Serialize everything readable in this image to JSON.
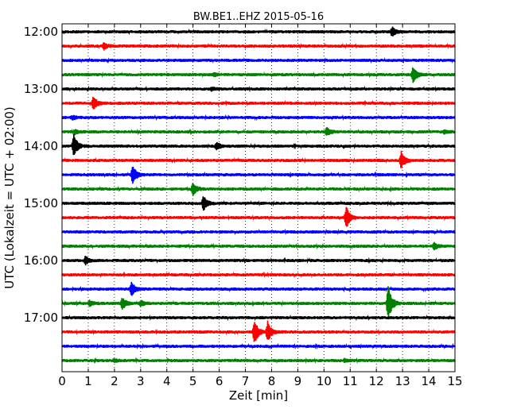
{
  "chart_data": {
    "type": "line",
    "title": "BW.BE1..EHZ 2015-05-16",
    "xlabel": "Zeit  [min]",
    "ylabel": "UTC (Lokalzeit = UTC + 02:00)",
    "xlim": [
      0,
      15
    ],
    "x_ticks": [
      "0",
      "1",
      "2",
      "3",
      "4",
      "5",
      "6",
      "7",
      "8",
      "9",
      "10",
      "11",
      "12",
      "13",
      "14",
      "15"
    ],
    "y_ticks": [
      "12:00",
      "13:00",
      "14:00",
      "15:00",
      "16:00",
      "17:00"
    ],
    "trace_interval_min": 15,
    "grid": true,
    "grid_axis": "x",
    "series_colors": [
      "#000000",
      "#ff0000",
      "#0000ff",
      "#008000"
    ],
    "traces": [
      {
        "start": "12:00",
        "color": "#000000",
        "events": [
          {
            "t": 12.6,
            "amp": 0.35
          }
        ]
      },
      {
        "start": "12:15",
        "color": "#ff0000",
        "events": [
          {
            "t": 1.6,
            "amp": 0.22
          }
        ]
      },
      {
        "start": "12:30",
        "color": "#0000ff",
        "events": []
      },
      {
        "start": "12:45",
        "color": "#008000",
        "events": [
          {
            "t": 13.4,
            "amp": 0.6
          },
          {
            "t": 5.8,
            "amp": 0.12
          }
        ]
      },
      {
        "start": "13:00",
        "color": "#000000",
        "events": [
          {
            "t": 5.7,
            "amp": 0.12
          }
        ]
      },
      {
        "start": "13:15",
        "color": "#ff0000",
        "events": [
          {
            "t": 1.2,
            "amp": 0.5
          }
        ]
      },
      {
        "start": "13:30",
        "color": "#0000ff",
        "events": [
          {
            "t": 0.4,
            "amp": 0.15
          }
        ]
      },
      {
        "start": "13:45",
        "color": "#008000",
        "events": [
          {
            "t": 10.1,
            "amp": 0.3
          },
          {
            "t": 0.5,
            "amp": 0.15
          },
          {
            "t": 14.6,
            "amp": 0.12
          }
        ]
      },
      {
        "start": "14:00",
        "color": "#000000",
        "events": [
          {
            "t": 0.45,
            "amp": 0.85
          },
          {
            "t": 5.9,
            "amp": 0.28
          }
        ]
      },
      {
        "start": "14:15",
        "color": "#ff0000",
        "events": [
          {
            "t": 12.95,
            "amp": 0.65
          }
        ]
      },
      {
        "start": "14:30",
        "color": "#0000ff",
        "events": [
          {
            "t": 2.7,
            "amp": 0.7
          }
        ]
      },
      {
        "start": "14:45",
        "color": "#008000",
        "events": [
          {
            "t": 5.0,
            "amp": 0.45
          }
        ]
      },
      {
        "start": "15:00",
        "color": "#000000",
        "events": [
          {
            "t": 5.4,
            "amp": 0.55
          }
        ]
      },
      {
        "start": "15:15",
        "color": "#ff0000",
        "events": [
          {
            "t": 10.85,
            "amp": 0.85
          }
        ]
      },
      {
        "start": "15:30",
        "color": "#0000ff",
        "events": []
      },
      {
        "start": "15:45",
        "color": "#008000",
        "events": [
          {
            "t": 14.2,
            "amp": 0.28
          }
        ]
      },
      {
        "start": "16:00",
        "color": "#000000",
        "events": [
          {
            "t": 0.9,
            "amp": 0.3
          }
        ]
      },
      {
        "start": "16:15",
        "color": "#ff0000",
        "events": []
      },
      {
        "start": "16:30",
        "color": "#0000ff",
        "events": [
          {
            "t": 2.65,
            "amp": 0.5
          }
        ]
      },
      {
        "start": "16:45",
        "color": "#008000",
        "events": [
          {
            "t": 2.3,
            "amp": 0.45
          },
          {
            "t": 12.45,
            "amp": 1.4
          },
          {
            "t": 1.05,
            "amp": 0.2
          },
          {
            "t": 3.0,
            "amp": 0.2
          }
        ]
      },
      {
        "start": "17:00",
        "color": "#000000",
        "events": []
      },
      {
        "start": "17:15",
        "color": "#ff0000",
        "events": [
          {
            "t": 7.35,
            "amp": 0.9
          },
          {
            "t": 7.85,
            "amp": 0.75
          }
        ]
      },
      {
        "start": "17:30",
        "color": "#0000ff",
        "events": []
      },
      {
        "start": "17:45",
        "color": "#008000",
        "events": [
          {
            "t": 2.0,
            "amp": 0.1
          },
          {
            "t": 10.8,
            "amp": 0.1
          }
        ]
      }
    ]
  }
}
